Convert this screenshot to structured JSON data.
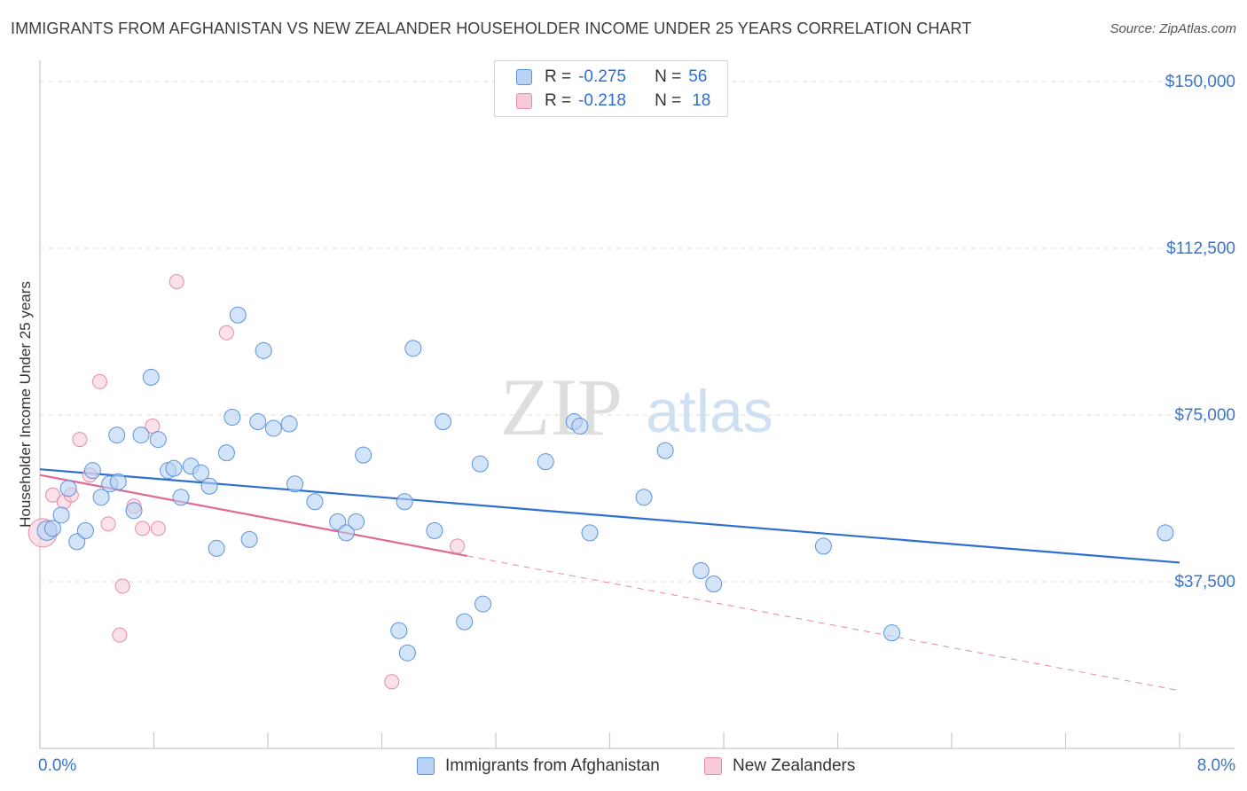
{
  "title": "IMMIGRANTS FROM AFGHANISTAN VS NEW ZEALANDER HOUSEHOLDER INCOME UNDER 25 YEARS CORRELATION CHART",
  "source": "Source: ZipAtlas.com",
  "watermark": {
    "zip": "ZIP",
    "atlas": "atlas"
  },
  "legend": {
    "series1": {
      "r_label": "R =",
      "r_value": "-0.275",
      "n_label": "N =",
      "n_value": "56"
    },
    "series2": {
      "r_label": "R =",
      "r_value": "-0.218",
      "n_label": "N =",
      "n_value": "18"
    }
  },
  "bottom_legend": {
    "series1": "Immigrants from Afghanistan",
    "series2": "New Zealanders"
  },
  "colors": {
    "blue_fill": "#b8d2f3",
    "blue_stroke": "#5b93db",
    "blue_line": "#2f6fcf",
    "pink_fill": "#f8c9d8",
    "pink_stroke": "#e68aa8",
    "pink_line": "#e06895",
    "axis_label": "#3a75c9",
    "grid": "#dcdcdc"
  },
  "chart_data": {
    "type": "scatter",
    "title": "IMMIGRANTS FROM AFGHANISTAN VS NEW ZEALANDER HOUSEHOLDER INCOME UNDER 25 YEARS CORRELATION CHART",
    "xlabel": "",
    "ylabel": "Householder Income Under 25 years",
    "xlim": [
      0,
      8
    ],
    "ylim": [
      0,
      153000
    ],
    "x_tick_labels": [
      "0.0%",
      "8.0%"
    ],
    "y_ticks": [
      37500,
      75000,
      112500,
      150000
    ],
    "y_tick_labels": [
      "$37,500",
      "$75,000",
      "$112,500",
      "$150,000"
    ],
    "series": [
      {
        "name": "Immigrants from Afghanistan",
        "points": [
          [
            0.05,
            49000
          ],
          [
            0.09,
            49500
          ],
          [
            0.15,
            52500
          ],
          [
            0.2,
            58500
          ],
          [
            0.26,
            46500
          ],
          [
            0.32,
            49000
          ],
          [
            0.37,
            62500
          ],
          [
            0.43,
            56500
          ],
          [
            0.49,
            59500
          ],
          [
            0.55,
            60000
          ],
          [
            0.54,
            70500
          ],
          [
            0.66,
            53500
          ],
          [
            0.71,
            70500
          ],
          [
            0.78,
            83500
          ],
          [
            0.83,
            69500
          ],
          [
            0.9,
            62500
          ],
          [
            0.94,
            63000
          ],
          [
            0.99,
            56500
          ],
          [
            1.06,
            63500
          ],
          [
            1.13,
            62000
          ],
          [
            1.19,
            59000
          ],
          [
            1.24,
            45000
          ],
          [
            1.31,
            66500
          ],
          [
            1.35,
            74500
          ],
          [
            1.39,
            97500
          ],
          [
            1.47,
            47000
          ],
          [
            1.53,
            73500
          ],
          [
            1.57,
            89500
          ],
          [
            1.64,
            72000
          ],
          [
            1.75,
            73000
          ],
          [
            1.79,
            59500
          ],
          [
            1.93,
            55500
          ],
          [
            2.09,
            51000
          ],
          [
            2.15,
            48500
          ],
          [
            2.22,
            51000
          ],
          [
            2.27,
            66000
          ],
          [
            2.52,
            26500
          ],
          [
            2.58,
            21500
          ],
          [
            2.56,
            55500
          ],
          [
            2.62,
            90000
          ],
          [
            2.77,
            49000
          ],
          [
            2.83,
            73500
          ],
          [
            2.98,
            28500
          ],
          [
            3.09,
            64000
          ],
          [
            3.11,
            32500
          ],
          [
            3.55,
            64500
          ],
          [
            3.75,
            73500
          ],
          [
            3.79,
            72500
          ],
          [
            3.86,
            48500
          ],
          [
            4.24,
            56500
          ],
          [
            4.39,
            67000
          ],
          [
            4.64,
            40000
          ],
          [
            4.73,
            37000
          ],
          [
            5.5,
            45500
          ],
          [
            5.98,
            26000
          ],
          [
            7.9,
            48500
          ]
        ],
        "trend": {
          "x": [
            0,
            8
          ],
          "y": [
            62800,
            41800
          ]
        }
      },
      {
        "name": "New Zealanders",
        "points": [
          [
            0.02,
            48500
          ],
          [
            0.09,
            57000
          ],
          [
            0.17,
            55500
          ],
          [
            0.22,
            57000
          ],
          [
            0.28,
            69500
          ],
          [
            0.35,
            61500
          ],
          [
            0.42,
            82500
          ],
          [
            0.48,
            50500
          ],
          [
            0.56,
            25500
          ],
          [
            0.58,
            36500
          ],
          [
            0.66,
            54500
          ],
          [
            0.72,
            49500
          ],
          [
            0.79,
            72500
          ],
          [
            0.83,
            49500
          ],
          [
            0.96,
            105000
          ],
          [
            1.31,
            93500
          ],
          [
            2.47,
            15000
          ],
          [
            2.93,
            45500
          ]
        ],
        "trend": {
          "x": [
            0,
            3.0
          ],
          "y": [
            61500,
            43300
          ]
        },
        "trend_extension": {
          "x": [
            3.0,
            8
          ],
          "y": [
            43300,
            13000
          ]
        }
      }
    ]
  }
}
